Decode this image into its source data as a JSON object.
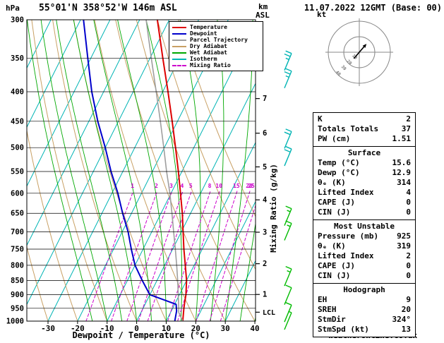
{
  "header": {
    "pressure_unit": "hPa",
    "title": "55°01'N 358°52'W 146m ASL",
    "km_label": "km",
    "asl_label": "ASL",
    "datetime": "11.07.2022 12GMT (Base: 00)"
  },
  "legend": {
    "items": [
      {
        "label": "Temperature",
        "color": "#dd0000",
        "dash": false
      },
      {
        "label": "Dewpoint",
        "color": "#0000cc",
        "dash": false
      },
      {
        "label": "Parcel Trajectory",
        "color": "#9e9e9e",
        "dash": false
      },
      {
        "label": "Dry Adiabat",
        "color": "#c8a064",
        "dash": false
      },
      {
        "label": "Wet Adiabat",
        "color": "#00a800",
        "dash": false
      },
      {
        "label": "Isotherm",
        "color": "#00b4b4",
        "dash": false
      },
      {
        "label": "Mixing Ratio",
        "color": "#cc00cc",
        "dash": true
      }
    ]
  },
  "axes": {
    "pressure_ticks": [
      300,
      350,
      400,
      450,
      500,
      550,
      600,
      650,
      700,
      750,
      800,
      850,
      900,
      950,
      1000
    ],
    "temp_ticks": [
      -30,
      -20,
      -10,
      0,
      10,
      20,
      30,
      40
    ],
    "xlabel": "Dewpoint / Temperature (°C)",
    "km_ticks": [
      {
        "km": 7,
        "p": 411
      },
      {
        "km": 6,
        "p": 472
      },
      {
        "km": 5,
        "p": 540
      },
      {
        "km": 4,
        "p": 616
      },
      {
        "km": 3,
        "p": 701
      },
      {
        "km": 2,
        "p": 795
      },
      {
        "km": 1,
        "p": 899
      }
    ],
    "lcl": {
      "label": "LCL",
      "p": 965
    },
    "mixing_axis_label": "Mixing Ratio (g/kg)"
  },
  "chart_data": {
    "type": "line",
    "title": "Skew-T log-P sounding",
    "x_axis": {
      "label": "Dewpoint / Temperature (°C)",
      "min": -30,
      "max": 40
    },
    "y_axis": {
      "label": "hPa",
      "min": 300,
      "max": 1000,
      "scale": "log"
    },
    "series": [
      {
        "name": "Temperature",
        "color": "#dd0000",
        "width": 2,
        "points": [
          [
            1000,
            15.6
          ],
          [
            950,
            13.8
          ],
          [
            925,
            13.0
          ],
          [
            900,
            12.2
          ],
          [
            850,
            10.0
          ],
          [
            800,
            7.0
          ],
          [
            750,
            3.8
          ],
          [
            700,
            0.6
          ],
          [
            650,
            -2.8
          ],
          [
            600,
            -6.8
          ],
          [
            550,
            -11.2
          ],
          [
            500,
            -16.2
          ],
          [
            450,
            -21.8
          ],
          [
            400,
            -28.2
          ],
          [
            350,
            -35.6
          ],
          [
            300,
            -44.0
          ]
        ]
      },
      {
        "name": "Dewpoint",
        "color": "#0000cc",
        "width": 2,
        "points": [
          [
            1000,
            12.9
          ],
          [
            960,
            11.8
          ],
          [
            935,
            10.5
          ],
          [
            900,
            0.0
          ],
          [
            850,
            -5.0
          ],
          [
            800,
            -10.0
          ],
          [
            750,
            -14.0
          ],
          [
            700,
            -18.0
          ],
          [
            650,
            -23.0
          ],
          [
            600,
            -28.0
          ],
          [
            550,
            -34.0
          ],
          [
            500,
            -40.0
          ],
          [
            450,
            -47.0
          ],
          [
            400,
            -54.0
          ],
          [
            350,
            -61.0
          ],
          [
            300,
            -69.0
          ]
        ]
      },
      {
        "name": "Parcel Trajectory",
        "color": "#9e9e9e",
        "width": 1.6,
        "points": [
          [
            1000,
            15.6
          ],
          [
            965,
            12.7
          ],
          [
            950,
            12.1
          ],
          [
            900,
            9.6
          ],
          [
            850,
            7.0
          ],
          [
            800,
            4.1
          ],
          [
            750,
            0.9
          ],
          [
            700,
            -2.6
          ],
          [
            650,
            -6.3
          ],
          [
            600,
            -10.4
          ],
          [
            550,
            -15.2
          ],
          [
            500,
            -20.2
          ],
          [
            450,
            -25.8
          ],
          [
            400,
            -32.2
          ],
          [
            350,
            -39.5
          ],
          [
            300,
            -47.8
          ]
        ]
      }
    ],
    "isotherms": {
      "min": -90,
      "max": 40,
      "step": 10,
      "color": "#00b4b4"
    },
    "dry_adiabats": {
      "min": -30,
      "max": 60,
      "step": 10,
      "color": "#c8a064"
    },
    "wet_adiabats": {
      "min": -15,
      "max": 40,
      "step": 5,
      "color": "#00a800"
    },
    "mixing_ratio": {
      "values": [
        1,
        2,
        3,
        4,
        5,
        8,
        10,
        15,
        20,
        25
      ],
      "color": "#cc00cc"
    },
    "wind_barbs": [
      {
        "p": 355,
        "color": "#00b4b4",
        "full": 2,
        "half": 1
      },
      {
        "p": 381,
        "color": "#00b4b4",
        "full": 2,
        "half": 1
      },
      {
        "p": 485,
        "color": "#00b4b4",
        "full": 2,
        "half": 0
      },
      {
        "p": 520,
        "color": "#00b4b4",
        "full": 2,
        "half": 0
      },
      {
        "p": 660,
        "color": "#00bb00",
        "full": 1,
        "half": 1
      },
      {
        "p": 700,
        "color": "#00bb00",
        "full": 1,
        "half": 1
      },
      {
        "p": 840,
        "color": "#00bb00",
        "full": 1,
        "half": 1
      },
      {
        "p": 905,
        "color": "#00bb00",
        "full": 1,
        "half": 0
      },
      {
        "p": 970,
        "color": "#00bb00",
        "full": 1,
        "half": 0
      },
      {
        "p": 1000,
        "color": "#00bb00",
        "full": 0,
        "half": 1
      }
    ]
  },
  "hodograph": {
    "unit": "kt",
    "rings_kt": [
      20,
      40
    ],
    "diag_labels": [
      "10",
      "20",
      "30",
      "40"
    ],
    "trace_kt": [
      [
        -7,
        8
      ],
      [
        0,
        0
      ],
      [
        6,
        -7
      ]
    ]
  },
  "panel": {
    "sections": [
      {
        "header": null,
        "rows": [
          [
            "K",
            "2"
          ],
          [
            "Totals Totals",
            "37"
          ],
          [
            "PW (cm)",
            "1.51"
          ]
        ]
      },
      {
        "header": "Surface",
        "rows": [
          [
            "Temp (°C)",
            "15.6"
          ],
          [
            "Dewp (°C)",
            "12.9"
          ],
          [
            "θₑ (K)",
            "314"
          ],
          [
            "Lifted Index",
            "4"
          ],
          [
            "CAPE (J)",
            "0"
          ],
          [
            "CIN (J)",
            "0"
          ]
        ]
      },
      {
        "header": "Most Unstable",
        "rows": [
          [
            "Pressure (mb)",
            "925"
          ],
          [
            "θₑ (K)",
            "319"
          ],
          [
            "Lifted Index",
            "2"
          ],
          [
            "CAPE (J)",
            "0"
          ],
          [
            "CIN (J)",
            "0"
          ]
        ]
      },
      {
        "header": "Hodograph",
        "rows": [
          [
            "EH",
            "9"
          ],
          [
            "SREH",
            "20"
          ],
          [
            "StmDir",
            "324°"
          ],
          [
            "StmSpd (kt)",
            "13"
          ]
        ]
      }
    ]
  },
  "footer": "© weatheronline.co.uk"
}
